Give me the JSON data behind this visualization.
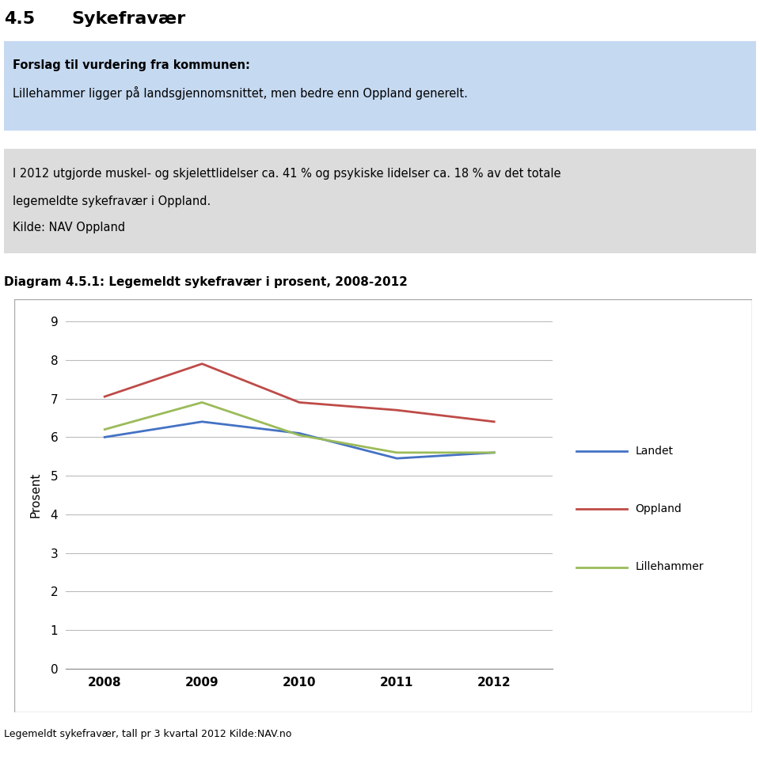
{
  "title_number": "4.5",
  "title_text": "Sykefravær",
  "box1_bold": "Forslag til vurdering fra kommunen:",
  "box1_text": "Lillehammer ligger på landsgjennomsnittet, men bedre enn Oppland generelt.",
  "box2_line1": "I 2012 utgjorde muskel- og skjelettlidelser ca. 41 % og psykiske lidelser ca. 18 % av det totale",
  "box2_line2": "legemeldte sykefravær i Oppland.",
  "box2_line3": "Kilde: NAV Oppland",
  "diagram_title": "Diagram 4.5.1: Legemeldt sykefravær i prosent, 2008-2012",
  "ylabel": "Prosent",
  "footer": "Legemeldt sykefravær, tall pr 3 kvartal 2012 Kilde:NAV.no",
  "years": [
    2008,
    2009,
    2010,
    2011,
    2012
  ],
  "landet": [
    6.0,
    6.4,
    6.1,
    5.45,
    5.6
  ],
  "oppland": [
    7.05,
    7.9,
    6.9,
    6.7,
    6.4
  ],
  "lillehammer": [
    6.2,
    6.9,
    6.05,
    5.6,
    5.6
  ],
  "landet_color": "#4472C4",
  "oppland_color": "#BE4B48",
  "lillehammer_color": "#9BBB59",
  "box1_bg": "#C5D9F1",
  "box2_bg": "#DCDCDC",
  "chart_border": "#AAAAAA",
  "ylim": [
    0,
    9
  ],
  "yticks": [
    0,
    1,
    2,
    3,
    4,
    5,
    6,
    7,
    8,
    9
  ]
}
